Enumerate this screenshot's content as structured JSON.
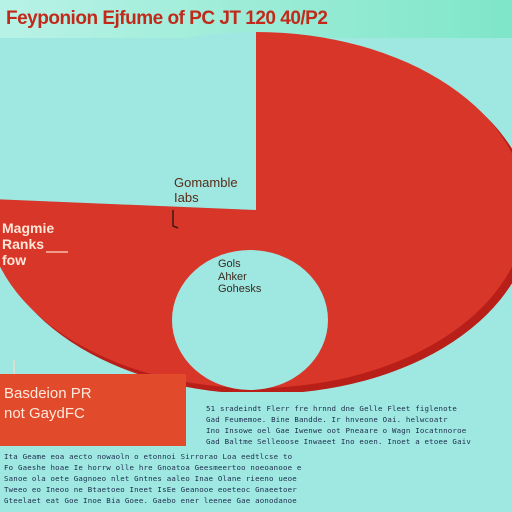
{
  "header": {
    "title": "Feyponion Ejfume of PC JT 120 40/P2"
  },
  "chart_data": {
    "type": "pie",
    "title": "Feyponion Ejfume of PC JT 120 40/P2",
    "slices": [
      {
        "label": "Gomamble Iabs",
        "value": 76,
        "color": "#d9362a"
      },
      {
        "label": "Gols Ahker Gohesks",
        "value": 24,
        "color": "#9fe8e2"
      }
    ],
    "callouts": [
      {
        "text": "Gomamble\nIabs"
      },
      {
        "text": "Magmie\nRanks\nfow"
      },
      {
        "text": "Gols\nAhker\nGohesks"
      }
    ],
    "legend": {
      "placement": "bottom-left",
      "text": "Basdeion PR\nnot GaydFC"
    }
  },
  "notes": {
    "lines": [
      "51 sradeindt Flerr fre hrnnd dne Gelle Fleet figlenote",
      "Gad Feumemoe. Bine Bandde. Ir hnveone Oai. helwcoatr",
      "Ino Insowe oel Gae Iwenwe oot Pneaare o Wagn Iocatnnoroe",
      "Gad Baltme Selleoose Inwaeet Ino eoen. Inoet a etoee Gaiv",
      "Ita Geame eoa aecto nowaoln o etonnoi Sirrorao Loa eedtlcse to",
      "Fo Gaeshe hoae Ie horrw olle hre Gnoatoa Geesmeertoo noeoanooe e",
      "Sanoe ola oete Gagnoeo nlet Gntnes aaleo Inae Olane rieeno ueoe",
      "Tweeo eo Ineoo ne Btaetoeo Ineet IsEe Geanooe eoeteoc Gnaeetoer",
      "Gteelaet eat Goe Inoe Bia Goee. Gaebo ener leenee Gae aonodanoe"
    ]
  }
}
